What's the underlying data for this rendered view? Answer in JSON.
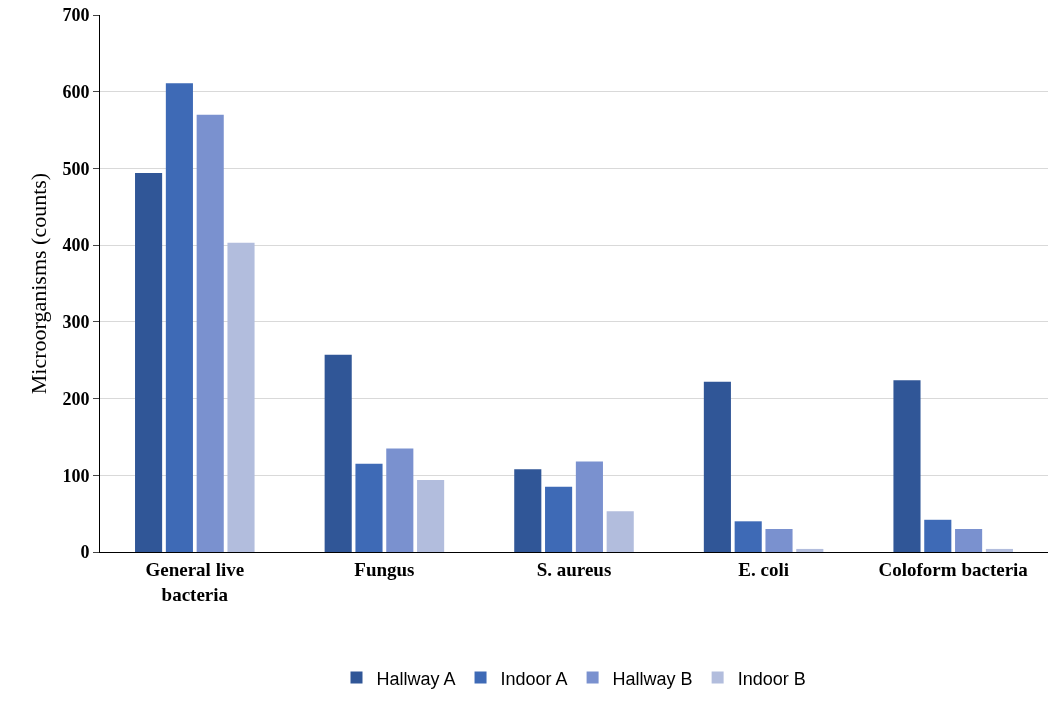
{
  "chart_data": {
    "type": "bar",
    "ylabel": "Microorganisms (counts)",
    "categories": [
      "General live bacteria",
      "Fungus",
      "S. aureus",
      "E. coli",
      "Coloform bacteria"
    ],
    "series": [
      {
        "name": "Hallway A",
        "color": "#305697",
        "values": [
          494,
          257,
          108,
          222,
          224
        ]
      },
      {
        "name": "Indoor A",
        "color": "#3e6ab6",
        "values": [
          611,
          115,
          85,
          40,
          42
        ]
      },
      {
        "name": "Hallway B",
        "color": "#7a91cf",
        "values": [
          570,
          135,
          118,
          30,
          30
        ]
      },
      {
        "name": "Indoor B",
        "color": "#b2bddd",
        "values": [
          403,
          94,
          53,
          4,
          4
        ]
      }
    ],
    "ylim": [
      0,
      700
    ],
    "yticks": [
      0,
      100,
      200,
      300,
      400,
      500,
      600,
      700
    ],
    "grid": "y",
    "legend": "bottom"
  }
}
